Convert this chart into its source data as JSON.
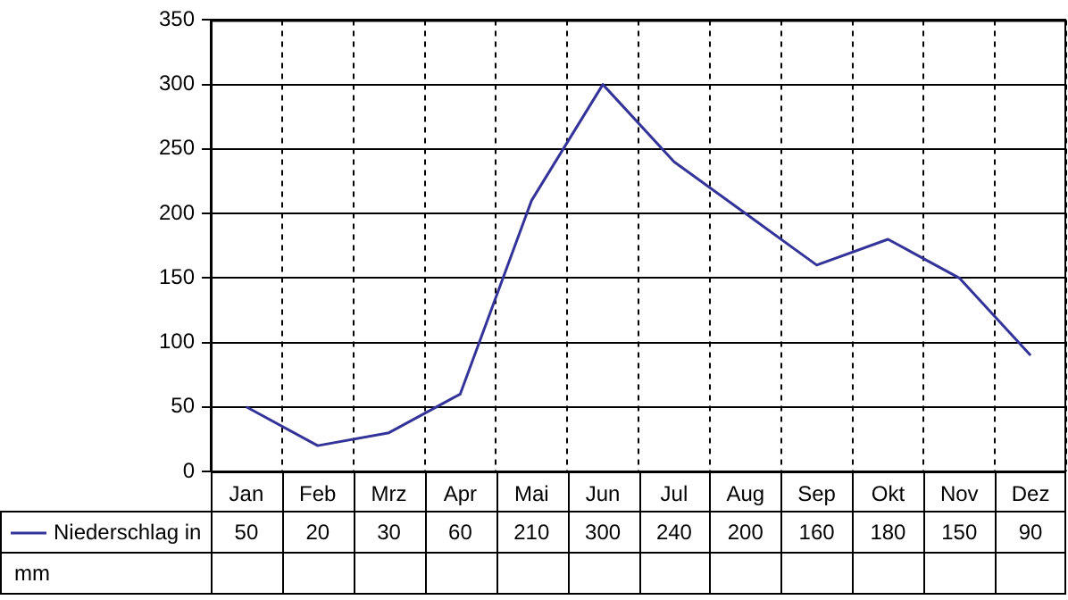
{
  "chart_data": {
    "type": "line",
    "categories": [
      "Jan",
      "Feb",
      "Mrz",
      "Apr",
      "Mai",
      "Jun",
      "Jul",
      "Aug",
      "Sep",
      "Okt",
      "Nov",
      "Dez"
    ],
    "series": [
      {
        "name": "Niederschlag in mm",
        "color": "#333399",
        "values": [
          50,
          20,
          30,
          60,
          210,
          300,
          240,
          200,
          160,
          180,
          150,
          90
        ]
      }
    ],
    "ylim": [
      0,
      350
    ],
    "yticks": [
      0,
      50,
      100,
      150,
      200,
      250,
      300,
      350
    ],
    "grid": true,
    "data_labels": true,
    "legend": "bottom",
    "marker": "none",
    "line_style": "solid"
  }
}
